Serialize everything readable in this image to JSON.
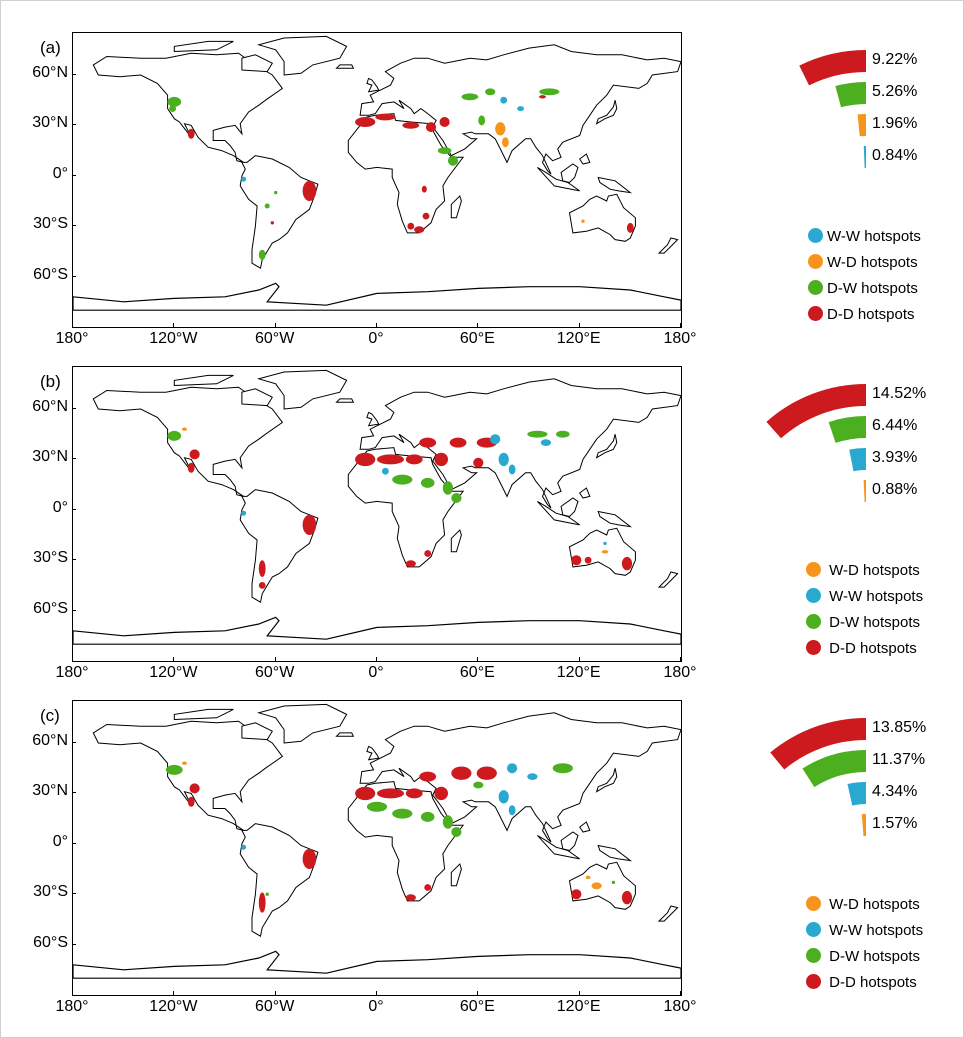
{
  "colors": {
    "w_w": "#29a9cf",
    "w_d": "#f7941d",
    "d_w": "#4caf1f",
    "d_d": "#cc1a1f"
  },
  "latitude_labels": [
    "60°N",
    "30°N",
    "0°",
    "30°S",
    "60°S"
  ],
  "longitude_labels": [
    "180°",
    "120°W",
    "60°W",
    "0°",
    "60°E",
    "120°E",
    "180°"
  ],
  "panels": [
    {
      "label": "(a)",
      "bars": [
        {
          "value": 9.22,
          "label": "9.22%",
          "color": "#cc1a1f"
        },
        {
          "value": 5.26,
          "label": "5.26%",
          "color": "#4caf1f"
        },
        {
          "value": 1.96,
          "label": "1.96%",
          "color": "#f7941d"
        },
        {
          "value": 0.84,
          "label": "0.84%",
          "color": "#29a9cf"
        }
      ],
      "legend": [
        {
          "label": "W-W hotspots",
          "color": "#29a9cf"
        },
        {
          "label": "W-D hotspots",
          "color": "#f7941d"
        },
        {
          "label": "D-W hotspots",
          "color": "#4caf1f"
        },
        {
          "label": "D-D hotspots",
          "color": "#cc1a1f"
        }
      ]
    },
    {
      "label": "(b)",
      "bars": [
        {
          "value": 14.52,
          "label": "14.52%",
          "color": "#cc1a1f"
        },
        {
          "value": 6.44,
          "label": "6.44%",
          "color": "#4caf1f"
        },
        {
          "value": 3.93,
          "label": "3.93%",
          "color": "#29a9cf"
        },
        {
          "value": 0.88,
          "label": "0.88%",
          "color": "#f7941d"
        }
      ],
      "legend": [
        {
          "label": "W-D hotspots",
          "color": "#f7941d"
        },
        {
          "label": "W-W hotspots",
          "color": "#29a9cf"
        },
        {
          "label": "D-W hotspots",
          "color": "#4caf1f"
        },
        {
          "label": "D-D hotspots",
          "color": "#cc1a1f"
        }
      ]
    },
    {
      "label": "(c)",
      "bars": [
        {
          "value": 13.85,
          "label": "13.85%",
          "color": "#cc1a1f"
        },
        {
          "value": 11.37,
          "label": "11.37%",
          "color": "#4caf1f"
        },
        {
          "value": 4.34,
          "label": "4.34%",
          "color": "#29a9cf"
        },
        {
          "value": 1.57,
          "label": "1.57%",
          "color": "#f7941d"
        }
      ],
      "legend": [
        {
          "label": "W-D hotspots",
          "color": "#f7941d"
        },
        {
          "label": "W-W hotspots",
          "color": "#29a9cf"
        },
        {
          "label": "D-W hotspots",
          "color": "#4caf1f"
        },
        {
          "label": "D-D hotspots",
          "color": "#cc1a1f"
        }
      ]
    }
  ]
}
